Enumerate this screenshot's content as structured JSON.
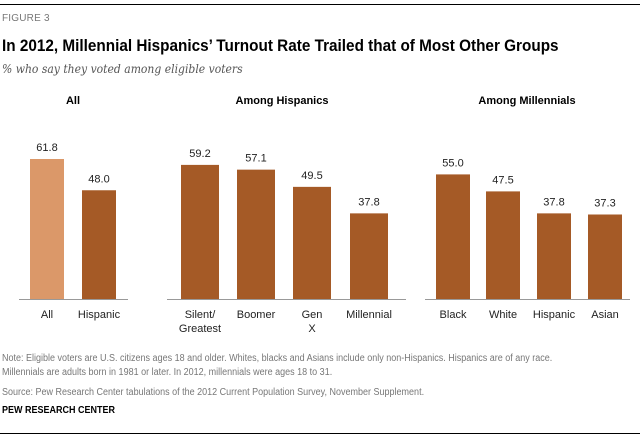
{
  "header": {
    "figure_label": "FIGURE 3",
    "title": "In 2012, Millennial Hispanics’ Turnout Rate Trailed that of Most Other Groups",
    "subtitle": "% who say they voted among eligible voters"
  },
  "chart_data": [
    {
      "type": "bar",
      "title": "All",
      "categories": [
        "All",
        "Hispanic"
      ],
      "values": [
        61.8,
        48.0
      ],
      "colors": [
        "#DB9869",
        "#A55A26"
      ]
    },
    {
      "type": "bar",
      "title": "Among Hispanics",
      "categories": [
        "Silent/ Greatest",
        "Boomer",
        "Gen X",
        "Millennial"
      ],
      "values": [
        59.2,
        57.1,
        49.5,
        37.8
      ],
      "colors": [
        "#A55A26",
        "#A55A26",
        "#A55A26",
        "#A55A26"
      ]
    },
    {
      "type": "bar",
      "title": "Among Millennials",
      "categories": [
        "Black",
        "White",
        "Hispanic",
        "Asian"
      ],
      "values": [
        55.0,
        47.5,
        37.8,
        37.3
      ],
      "colors": [
        "#A55A26",
        "#A55A26",
        "#A55A26",
        "#A55A26"
      ]
    }
  ],
  "footer": {
    "note_line1": "Note: Eligible voters are U.S. citizens ages 18 and older. Whites, blacks and Asians include only non-Hispanics. Hispanics are of any race.",
    "note_line2": "Millennials are adults born in 1981 or later. In 2012, millennials were ages 18 to 31.",
    "source": "Source: Pew Research Center tabulations of the 2012 Current Population Survey, November Supplement.",
    "brand": "PEW RESEARCH CENTER"
  }
}
